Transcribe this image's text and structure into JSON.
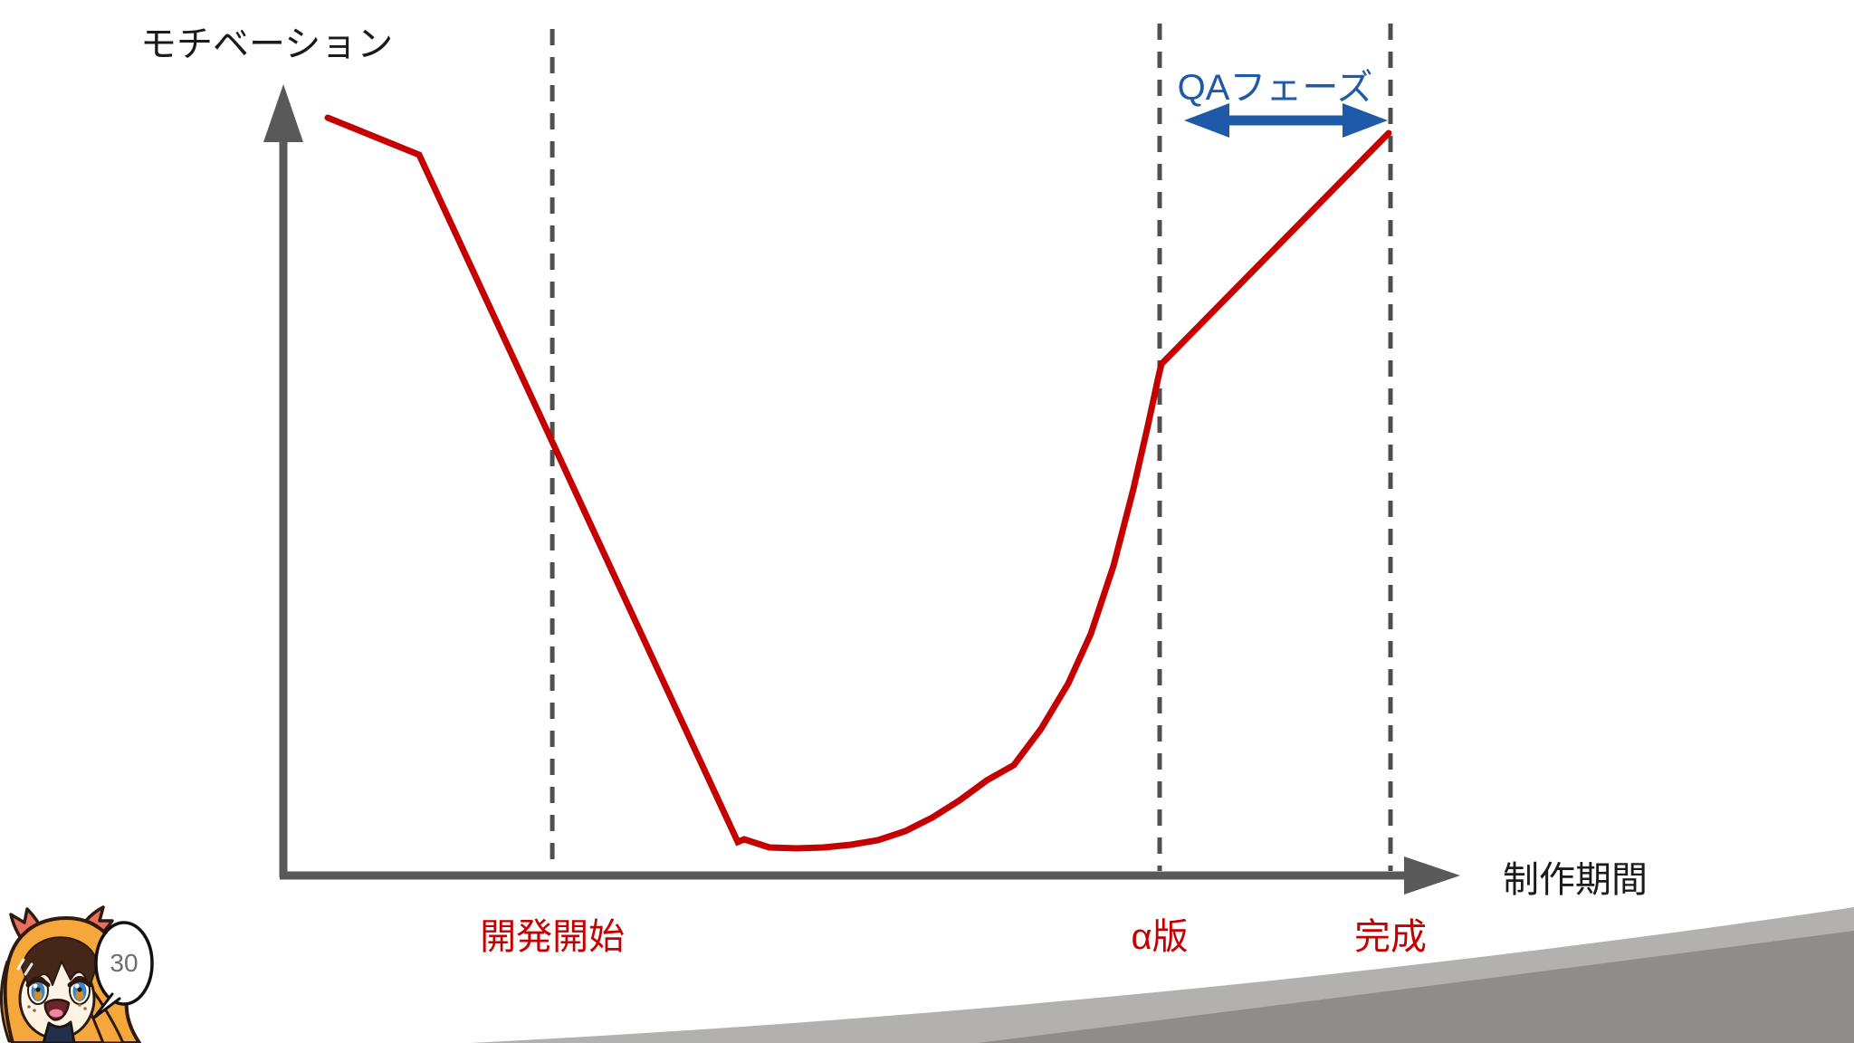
{
  "slide": {
    "page_number": "30",
    "background_color": "#ffffff",
    "decoration": {
      "wedge_light_gray": "#b3b0b0",
      "wedge_dark_gray": "#8f8c8c"
    }
  },
  "chart_data": {
    "type": "line",
    "title": "",
    "xlabel": "制作期間",
    "ylabel": "モチベーション",
    "xlim": [
      0,
      100
    ],
    "ylim": [
      0,
      100
    ],
    "grid": false,
    "legend": "none",
    "axis_color": "#595959",
    "marker_line_style": "dashed",
    "marker_line_color": "#4f4f4f",
    "series": [
      {
        "name": "モチベーション",
        "color": "#c40000",
        "points": [
          [
            3.81,
            96.2
          ],
          [
            11.5,
            91.47
          ],
          [
            38.31,
            4.03
          ],
          [
            38.84,
            4.38
          ],
          [
            40.97,
            3.34
          ],
          [
            43.26,
            3.23
          ],
          [
            45.54,
            3.34
          ],
          [
            47.83,
            3.69
          ],
          [
            50.11,
            4.26
          ],
          [
            52.4,
            5.41
          ],
          [
            54.68,
            7.14
          ],
          [
            56.97,
            9.33
          ],
          [
            59.25,
            11.87
          ],
          [
            61.54,
            13.82
          ],
          [
            63.82,
            18.43
          ],
          [
            66.11,
            24.19
          ],
          [
            68.01,
            30.53
          ],
          [
            69.92,
            39.17
          ],
          [
            71.59,
            48.96
          ],
          [
            72.81,
            57.03
          ],
          [
            73.72,
            63.36
          ],
          [
            73.95,
            64.86
          ],
          [
            93.07,
            94.24
          ]
        ]
      }
    ],
    "markers": [
      {
        "label": "開発開始",
        "t": 22.7,
        "color": "#c40000"
      },
      {
        "label": "α版",
        "t": 73.8,
        "color": "#c40000"
      },
      {
        "label": "完成",
        "t": 93.22,
        "color": "#c40000"
      }
    ],
    "annotations": [
      {
        "label": "QAフェーズ",
        "type": "double-arrow",
        "from_t": 73.8,
        "to_t": 93.22,
        "color": "#1e5aa8"
      }
    ]
  }
}
